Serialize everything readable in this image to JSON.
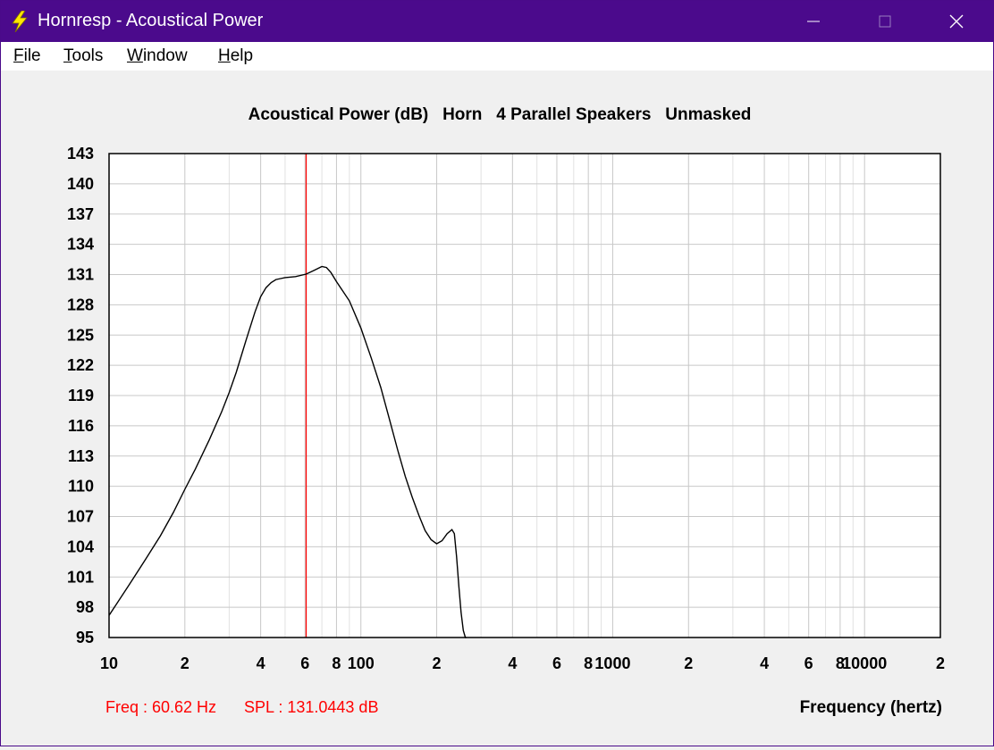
{
  "window": {
    "title": "Hornresp - Acoustical Power",
    "icon": "lightning-bolt-icon",
    "controls": [
      "minimize-icon",
      "maximize-icon",
      "close-icon"
    ]
  },
  "menu": [
    {
      "accel": "F",
      "rest": "ile"
    },
    {
      "accel": "T",
      "rest": "ools"
    },
    {
      "accel": "W",
      "rest": "indow"
    },
    {
      "accel": "H",
      "rest": "elp"
    }
  ],
  "chart_data": {
    "type": "line",
    "title": "Acoustical Power (dB)   Horn   4 Parallel Speakers   Unmasked",
    "xlabel": "Frequency (hertz)",
    "ylabel": "",
    "xscale": "log",
    "xlim": [
      10,
      20000
    ],
    "ylim": [
      95,
      143
    ],
    "yticks": [
      143,
      140,
      137,
      134,
      131,
      128,
      125,
      122,
      119,
      116,
      113,
      110,
      107,
      104,
      101,
      98,
      95
    ],
    "xticks": [
      {
        "value": 10,
        "label": "10"
      },
      {
        "value": 20,
        "label": "2"
      },
      {
        "value": 40,
        "label": "4"
      },
      {
        "value": 60,
        "label": "6"
      },
      {
        "value": 80,
        "label": "8"
      },
      {
        "value": 100,
        "label": "100"
      },
      {
        "value": 200,
        "label": "2"
      },
      {
        "value": 400,
        "label": "4"
      },
      {
        "value": 600,
        "label": "6"
      },
      {
        "value": 800,
        "label": "8"
      },
      {
        "value": 1000,
        "label": "1000"
      },
      {
        "value": 2000,
        "label": "2"
      },
      {
        "value": 4000,
        "label": "4"
      },
      {
        "value": 6000,
        "label": "6"
      },
      {
        "value": 8000,
        "label": "8"
      },
      {
        "value": 10000,
        "label": "10000"
      },
      {
        "value": 20000,
        "label": "2"
      }
    ],
    "grid": true,
    "series": [
      {
        "color": "#000000",
        "x": [
          10,
          12,
          14,
          16,
          18,
          20,
          22,
          25,
          28,
          30,
          32,
          35,
          38,
          40,
          42,
          44,
          46,
          48,
          50,
          55,
          60.62,
          65,
          70,
          73,
          76,
          80,
          90,
          100,
          110,
          120,
          130,
          140,
          150,
          160,
          170,
          180,
          190,
          200,
          210,
          220,
          230,
          235,
          240,
          245,
          250,
          255,
          260,
          262
        ],
        "y": [
          97.2,
          100.2,
          102.8,
          105.1,
          107.4,
          109.7,
          111.7,
          114.6,
          117.4,
          119.3,
          121.3,
          124.5,
          127.3,
          128.8,
          129.7,
          130.2,
          130.5,
          130.6,
          130.7,
          130.8,
          131.04,
          131.4,
          131.8,
          131.7,
          131.2,
          130.3,
          128.4,
          125.7,
          122.7,
          119.8,
          116.6,
          113.6,
          111.0,
          108.9,
          107.1,
          105.6,
          104.7,
          104.3,
          104.6,
          105.3,
          105.7,
          105.3,
          103.0,
          100.0,
          97.5,
          95.7,
          95.0,
          95.0
        ]
      }
    ],
    "cursor": {
      "freq": 60.62,
      "color": "#ff0000"
    },
    "readout": {
      "freq_text": "Freq : 60.62 Hz",
      "spl_text": "SPL : 131.0443 dB",
      "color": "#ff0000"
    }
  }
}
